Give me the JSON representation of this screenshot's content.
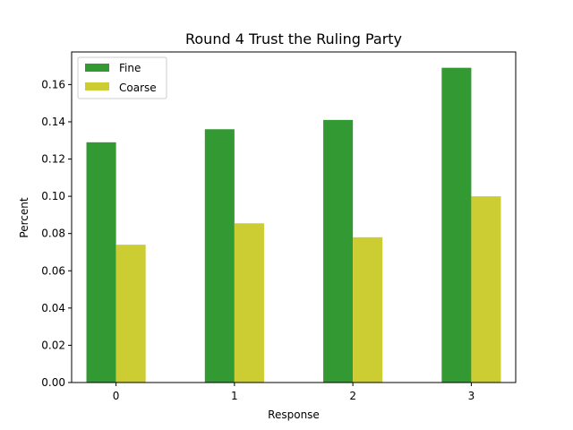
{
  "chart_data": {
    "type": "bar",
    "title": "Round 4 Trust the Ruling Party",
    "xlabel": "Response",
    "ylabel": "Percent",
    "categories": [
      "0",
      "1",
      "2",
      "3"
    ],
    "series": [
      {
        "name": "Fine",
        "color": "#339933",
        "values": [
          0.129,
          0.136,
          0.141,
          0.169
        ]
      },
      {
        "name": "Coarse",
        "color": "#cccc33",
        "values": [
          0.074,
          0.0855,
          0.078,
          0.1
        ]
      }
    ],
    "ylim": [
      0,
      0.1775
    ],
    "yticks": [
      "0.00",
      "0.02",
      "0.04",
      "0.06",
      "0.08",
      "0.10",
      "0.12",
      "0.14",
      "0.16"
    ],
    "legend_position": "top-left",
    "grid": false
  }
}
